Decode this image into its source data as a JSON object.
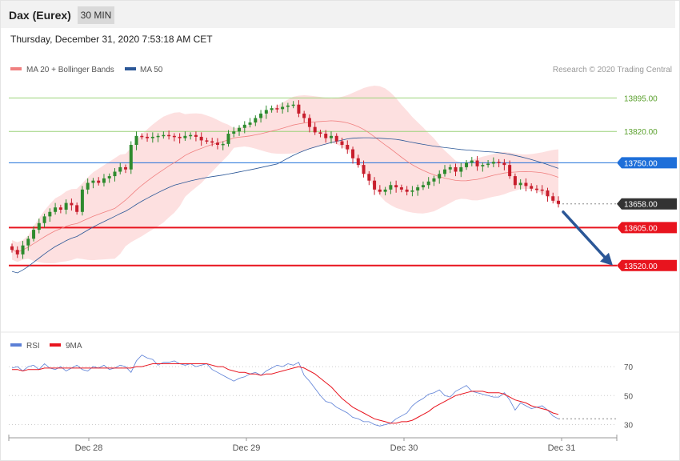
{
  "header": {
    "title": "Dax (Eurex)",
    "timeframe": "30 MIN",
    "datetime": "Thursday, December 31, 2020 7:53:18 AM CET",
    "copyright": "Research © 2020 Trading Central"
  },
  "colors": {
    "bollinger": "#f08080",
    "band_fill": "#fde0e0",
    "ma50": "#2b5797",
    "resistance": "#9bd27a",
    "pivot": "#1e6fd9",
    "support": "#e8141e",
    "current": "#333333",
    "arrow": "#2b5797",
    "rsi": "#5b7fd6",
    "rsi_ma": "#e8141e",
    "up_candle": "#2e8b2e",
    "down_candle": "#c81e2d"
  },
  "chart_data": [
    {
      "type": "candlestick",
      "legend": [
        {
          "name": "MA 20 + Bollinger Bands",
          "color": "#f08080"
        },
        {
          "name": "MA 50",
          "color": "#2b5797"
        }
      ],
      "ylim": [
        13380,
        13935
      ],
      "x_ticks": [
        "Dec 28",
        "Dec 29",
        "Dec 30",
        "Dec 31"
      ],
      "levels": [
        {
          "value": 13895,
          "label": "13895.00",
          "kind": "resistance"
        },
        {
          "value": 13820,
          "label": "13820.00",
          "kind": "resistance"
        },
        {
          "value": 13750,
          "label": "13750.00",
          "kind": "pivot"
        },
        {
          "value": 13658,
          "label": "13658.00",
          "kind": "current"
        },
        {
          "value": 13605,
          "label": "13605.00",
          "kind": "support"
        },
        {
          "value": 13520,
          "label": "13520.00",
          "kind": "support"
        }
      ],
      "closes": [
        13555,
        13545,
        13565,
        13580,
        13600,
        13615,
        13630,
        13640,
        13650,
        13645,
        13660,
        13655,
        13640,
        13690,
        13705,
        13710,
        13705,
        13715,
        13720,
        13730,
        13740,
        13735,
        13790,
        13810,
        13808,
        13805,
        13808,
        13810,
        13812,
        13810,
        13808,
        13805,
        13810,
        13812,
        13808,
        13800,
        13798,
        13795,
        13790,
        13792,
        13815,
        13820,
        13828,
        13835,
        13840,
        13850,
        13860,
        13868,
        13872,
        13870,
        13875,
        13878,
        13880,
        13860,
        13850,
        13830,
        13818,
        13815,
        13805,
        13810,
        13798,
        13790,
        13780,
        13760,
        13745,
        13725,
        13710,
        13690,
        13685,
        13690,
        13700,
        13695,
        13690,
        13685,
        13688,
        13695,
        13700,
        13708,
        13715,
        13725,
        13735,
        13740,
        13730,
        13740,
        13750,
        13755,
        13742,
        13745,
        13748,
        13752,
        13750,
        13745,
        13720,
        13700,
        13705,
        13698,
        13692,
        13690,
        13688,
        13675,
        13665,
        13658
      ]
    },
    {
      "type": "line",
      "series": [
        {
          "name": "RSI",
          "values": [
            69,
            70,
            67,
            70,
            71,
            68,
            72,
            69,
            68,
            70,
            67,
            69,
            71,
            68,
            67,
            70,
            69,
            71,
            68,
            69,
            71,
            70,
            66,
            74,
            78,
            76,
            75,
            71,
            73,
            73,
            74,
            72,
            71,
            72,
            70,
            71,
            72,
            68,
            66,
            64,
            62,
            60,
            62,
            63,
            65,
            66,
            64,
            67,
            69,
            71,
            70,
            72,
            71,
            73,
            64,
            60,
            55,
            50,
            46,
            45,
            42,
            40,
            38,
            35,
            34,
            32,
            32,
            30,
            29,
            30,
            31,
            34,
            36,
            38,
            43,
            46,
            48,
            51,
            52,
            54,
            50,
            49,
            53,
            55,
            57,
            53,
            52,
            51,
            50,
            49,
            49,
            52,
            47,
            40,
            45,
            43,
            41,
            42,
            43,
            40,
            36,
            34
          ]
        },
        {
          "name": "9MA",
          "values": [
            68,
            68,
            67,
            68,
            68,
            68,
            69,
            69,
            69,
            69,
            69,
            69,
            69,
            69,
            69,
            69,
            69,
            69,
            69,
            69,
            69,
            69,
            69,
            70,
            70,
            71,
            72,
            72,
            72,
            72,
            72,
            72,
            72,
            72,
            72,
            72,
            72,
            71,
            70,
            70,
            68,
            67,
            66,
            66,
            65,
            65,
            64,
            65,
            65,
            66,
            67,
            68,
            69,
            70,
            69,
            67,
            65,
            62,
            59,
            56,
            52,
            48,
            45,
            42,
            40,
            38,
            36,
            34,
            33,
            32,
            31,
            31,
            32,
            32,
            33,
            35,
            37,
            39,
            42,
            44,
            46,
            48,
            50,
            51,
            52,
            53,
            53,
            53,
            52,
            52,
            52,
            51,
            49,
            47,
            46,
            45,
            43,
            42,
            41,
            40,
            38,
            37
          ]
        }
      ],
      "y_ticks": [
        70,
        50,
        30
      ],
      "ylim": [
        22,
        80
      ]
    }
  ]
}
